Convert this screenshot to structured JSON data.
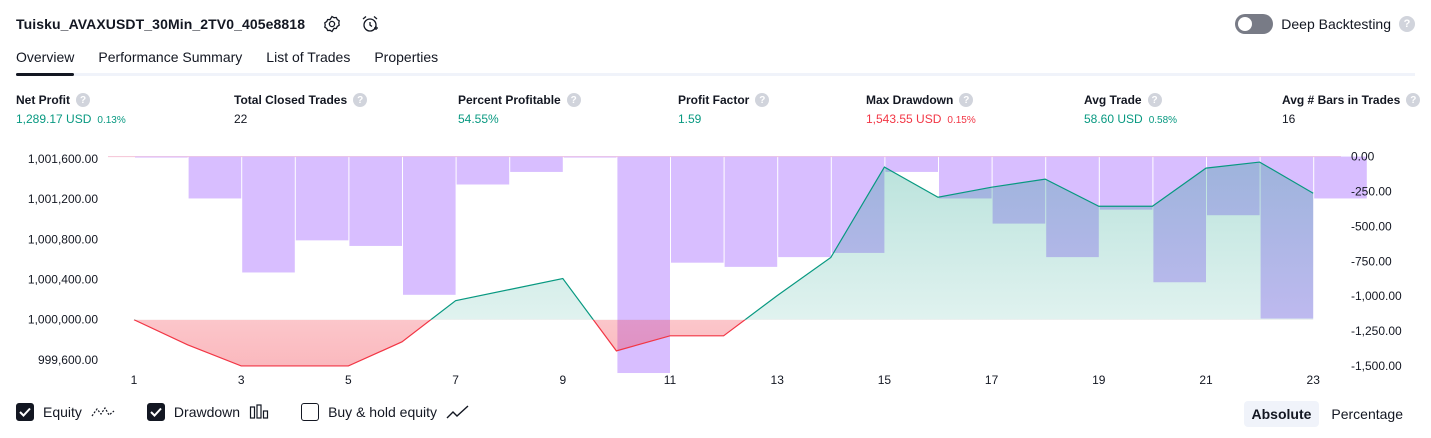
{
  "header": {
    "title": "Tuisku_AVAXUSDT_30Min_2TV0_405e8818",
    "deep_backtesting_label": "Deep Backtesting",
    "help_glyph": "?"
  },
  "tabs": [
    {
      "label": "Overview",
      "active": true
    },
    {
      "label": "Performance Summary"
    },
    {
      "label": "List of Trades"
    },
    {
      "label": "Properties"
    }
  ],
  "metrics": [
    {
      "label": "Net Profit",
      "value": "1,289.17 USD",
      "pct": "0.13%",
      "tone": "green"
    },
    {
      "label": "Total Closed Trades",
      "value": "22",
      "pct": "",
      "tone": "neutral"
    },
    {
      "label": "Percent Profitable",
      "value": "54.55%",
      "pct": "",
      "tone": "green"
    },
    {
      "label": "Profit Factor",
      "value": "1.59",
      "pct": "",
      "tone": "green"
    },
    {
      "label": "Max Drawdown",
      "value": "1,543.55 USD",
      "pct": "0.15%",
      "tone": "red"
    },
    {
      "label": "Avg Trade",
      "value": "58.60 USD",
      "pct": "0.58%",
      "tone": "green"
    },
    {
      "label": "Avg # Bars in Trades",
      "value": "16",
      "pct": "",
      "tone": "neutral"
    }
  ],
  "chart_data": {
    "type": "line",
    "x": [
      1,
      2,
      3,
      4,
      5,
      6,
      7,
      8,
      9,
      10,
      11,
      12,
      13,
      14,
      15,
      16,
      17,
      18,
      19,
      20,
      21,
      22,
      23
    ],
    "x_ticks": [
      "1",
      "3",
      "5",
      "7",
      "9",
      "11",
      "13",
      "15",
      "17",
      "19",
      "21",
      "23"
    ],
    "left_ticks": [
      "1,001,600.00",
      "1,001,200.00",
      "1,000,800.00",
      "1,000,400.00",
      "1,000,000.00",
      "999,600.00"
    ],
    "right_ticks": [
      "0.00",
      "-250.00",
      "-500.00",
      "-750.00",
      "-1,000.00",
      "-1,250.00",
      "-1,500.00"
    ],
    "left_ylim": [
      999400,
      1001750
    ],
    "right_ylim": [
      -1600,
      90
    ],
    "baseline": 1000000,
    "series": [
      {
        "name": "Equity",
        "axis": "left",
        "color": "#089981",
        "values": [
          1000000,
          999750,
          999540,
          999540,
          999540,
          999780,
          1000190,
          1000300,
          1000410,
          999690,
          999840,
          999840,
          1000240,
          1000620,
          1001520,
          1001220,
          1001320,
          1001400,
          1001130,
          1001130,
          1001510,
          1001570,
          1001260
        ]
      },
      {
        "name": "Drawdown",
        "axis": "right",
        "color": "#d1b3ff",
        "values": [
          -5,
          -300,
          -830,
          -600,
          -640,
          -990,
          -200,
          -110,
          -5,
          -1550,
          -760,
          -790,
          -720,
          -690,
          -110,
          -300,
          -480,
          -720,
          -380,
          -900,
          -420,
          -1160,
          -300
        ]
      }
    ],
    "grid": false,
    "legend_position": "bottom-left"
  },
  "legend": [
    {
      "label": "Equity",
      "checked": true,
      "icon": "equity-line-icon"
    },
    {
      "label": "Drawdown",
      "checked": true,
      "icon": "drawdown-bars-icon"
    },
    {
      "label": "Buy & hold equity",
      "checked": false,
      "icon": "buy-hold-line-icon"
    }
  ],
  "modes": [
    {
      "label": "Absolute",
      "active": true
    },
    {
      "label": "Percentage",
      "active": false
    }
  ]
}
